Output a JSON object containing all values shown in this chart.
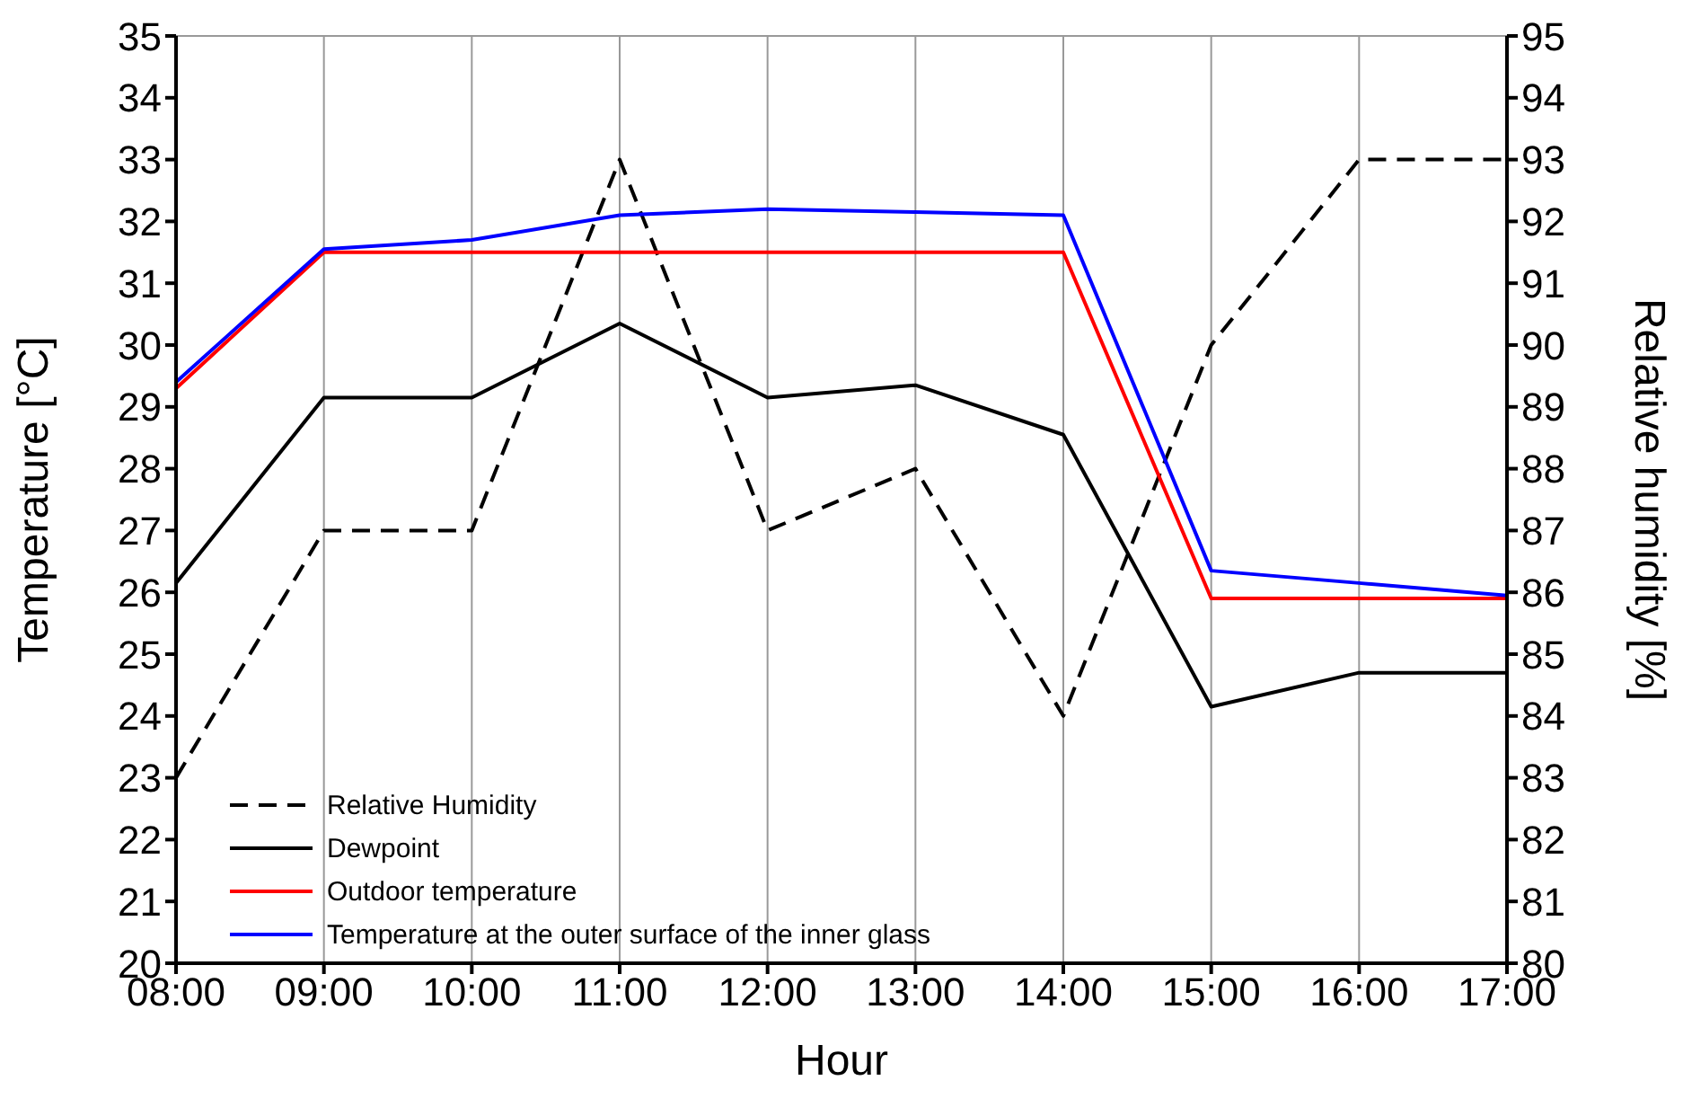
{
  "chart_data": {
    "type": "line",
    "xlabel": "Hour",
    "ylabel": "Temperature [°C]",
    "y2label": "Relative humidity [%]",
    "categories": [
      "08:00",
      "09:00",
      "10:00",
      "11:00",
      "12:00",
      "13:00",
      "14:00",
      "15:00",
      "16:00",
      "17:00"
    ],
    "series": [
      {
        "name": "Relative Humidity",
        "color": "#000000",
        "axis": "y2",
        "line_style": "dashed",
        "values": [
          83,
          87,
          87,
          93,
          87,
          88,
          84,
          90,
          93,
          93
        ]
      },
      {
        "name": "Dewpoint",
        "color": "#000000",
        "values": [
          26.15,
          29.15,
          29.15,
          30.35,
          29.15,
          29.35,
          28.55,
          24.15,
          24.7,
          24.7
        ]
      },
      {
        "name": "Outdoor temperature",
        "color": "#ff0000",
        "values": [
          29.3,
          31.5,
          31.5,
          31.5,
          31.5,
          31.5,
          31.5,
          25.9,
          25.9,
          25.9
        ]
      },
      {
        "name": "Temperature at the outer surface of the inner glass",
        "color": "#0000ff",
        "values": [
          29.4,
          31.55,
          31.7,
          32.1,
          32.2,
          32.15,
          32.1,
          26.35,
          26.15,
          25.95
        ]
      }
    ],
    "ylim": [
      20,
      35
    ],
    "yticks": [
      20,
      21,
      22,
      23,
      24,
      25,
      26,
      27,
      28,
      29,
      30,
      31,
      32,
      33,
      34,
      35
    ],
    "y2lim": [
      80,
      95
    ],
    "y2ticks": [
      80,
      81,
      82,
      83,
      84,
      85,
      86,
      87,
      88,
      89,
      90,
      91,
      92,
      93,
      94,
      95
    ],
    "grid": true,
    "legend": "bottom left",
    "marker": "none",
    "line_style": "solid"
  }
}
